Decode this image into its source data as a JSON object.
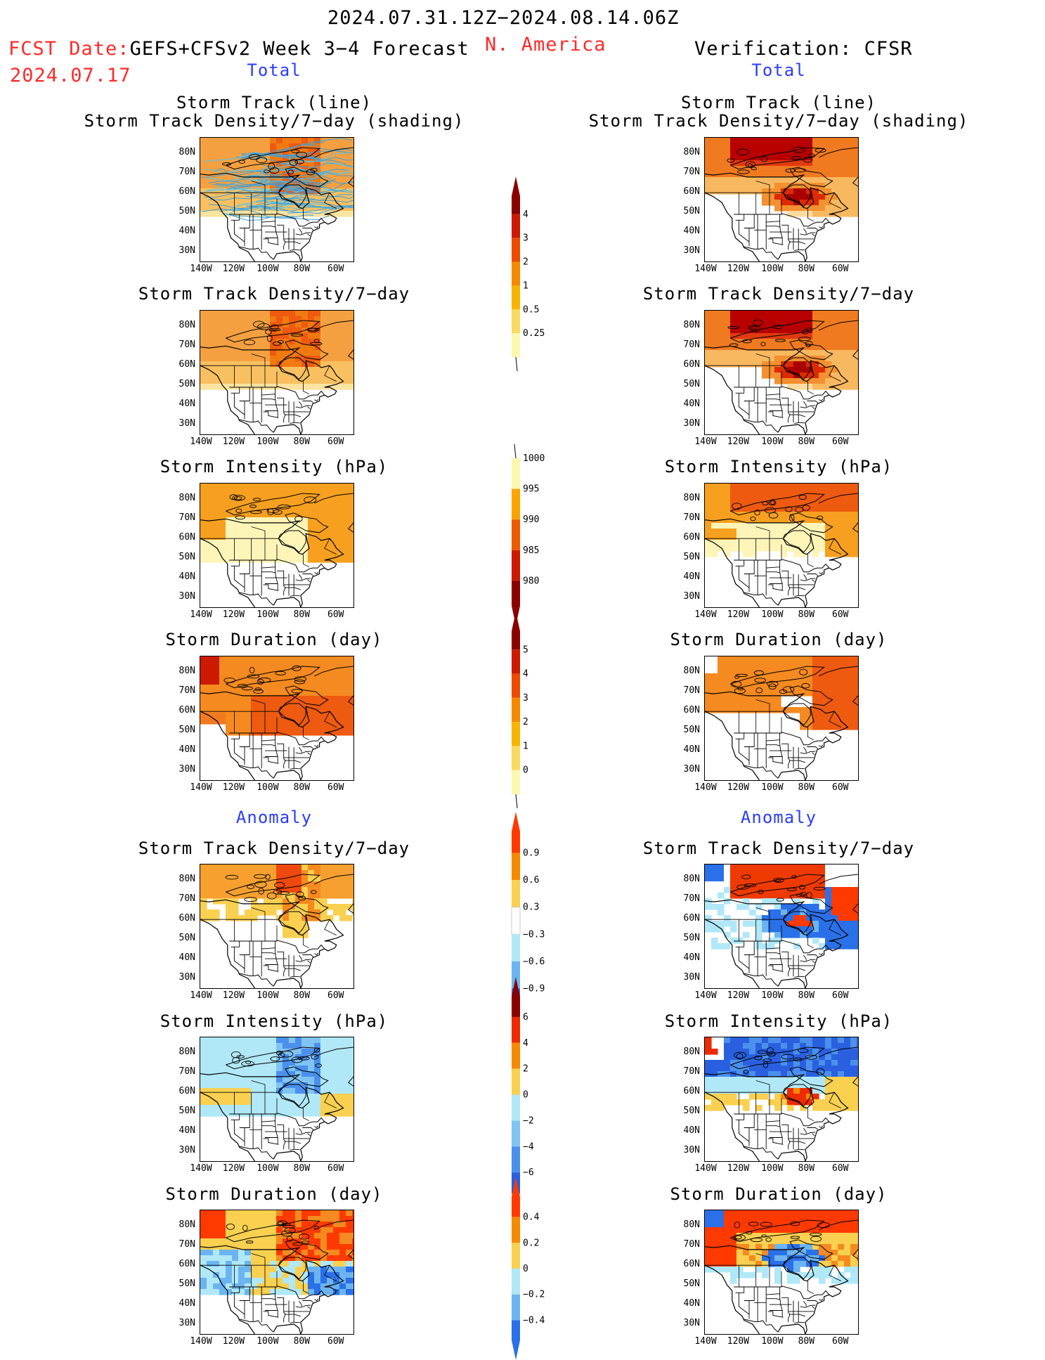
{
  "header": {
    "date_range": "2024.07.31.12Z−2024.08.14.06Z",
    "fcst_date_label": "FCST Date:",
    "fcst_model": "GEFS+CFSv2 Week 3−4 Forecast",
    "fcst_date": "2024.07.17",
    "region": "N. America",
    "verification": "Verification: CFSR"
  },
  "sections": {
    "total": "Total",
    "anomaly": "Anomaly"
  },
  "panel_titles": {
    "storm_track_line": "Storm Track (line)",
    "storm_track_density_shading": "Storm Track Density/7−day (shading)",
    "storm_track_density": "Storm Track Density/7−day",
    "storm_intensity": "Storm Intensity (hPa)",
    "storm_duration": "Storm Duration (day)"
  },
  "axes": {
    "lat_labels": [
      "80N",
      "70N",
      "60N",
      "50N",
      "40N",
      "30N"
    ],
    "lon_labels": [
      "140W",
      "120W",
      "100W",
      "80W",
      "60W"
    ]
  },
  "colorbars": {
    "density_total": {
      "labels": [
        "4",
        "3",
        "2",
        "1",
        "0.5",
        "0.25"
      ],
      "colors": [
        "#8b0000",
        "#cc1a00",
        "#ee4a00",
        "#f58a00",
        "#f7b500",
        "#f9da60",
        "#fdf7b0"
      ]
    },
    "intensity_total": {
      "labels": [
        "1000",
        "995",
        "990",
        "985",
        "980"
      ],
      "colors": [
        "#fdf7b0",
        "#f9a400",
        "#ee5a00",
        "#cc1a00",
        "#8b0000"
      ]
    },
    "duration_total": {
      "labels": [
        "5",
        "4",
        "3",
        "2",
        "1",
        "0"
      ],
      "colors": [
        "#8b0000",
        "#cc1a00",
        "#ee4a00",
        "#f58a00",
        "#f7b500",
        "#f9da60",
        "#fdf7b0"
      ]
    },
    "density_anom": {
      "labels": [
        "0.9",
        "0.6",
        "0.3",
        "−0.3",
        "−0.6",
        "−0.9"
      ],
      "colors": [
        "#ff3a00",
        "#f58a00",
        "#f9d050",
        "#ffffff",
        "#b0e8f8",
        "#6cb4f0",
        "#2a70e8"
      ]
    },
    "intensity_anom": {
      "labels": [
        "6",
        "4",
        "2",
        "0",
        "−2",
        "−4",
        "−6"
      ],
      "colors": [
        "#8b0000",
        "#ee2a00",
        "#f58a00",
        "#f9d050",
        "#b0e8f8",
        "#80c4f4",
        "#4a90ec",
        "#2a60e0"
      ]
    },
    "duration_anom": {
      "labels": [
        "0.4",
        "0.2",
        "0",
        "−0.2",
        "−0.4"
      ],
      "colors": [
        "#ff3a00",
        "#f58a00",
        "#f9d050",
        "#b0e8f8",
        "#6cb4f0",
        "#2a70e8"
      ]
    }
  },
  "colors": {
    "red_text": "#ff2a2a",
    "blue_text": "#2a3cff"
  }
}
